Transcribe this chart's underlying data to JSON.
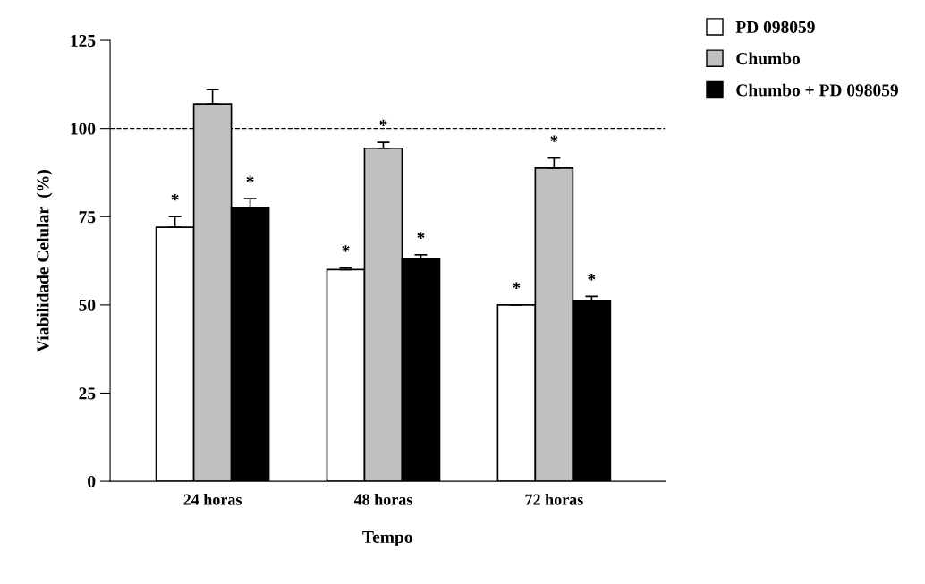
{
  "chart_data": {
    "type": "bar",
    "xlabel": "Tempo",
    "ylabel": "Viabilidade Celular  (%)",
    "categories": [
      "24 horas",
      "48 horas",
      "72 horas"
    ],
    "series": [
      {
        "name": "PD 098059",
        "color": "#ffffff",
        "values": [
          72,
          60,
          50
        ],
        "errors": [
          3,
          0.5,
          null
        ],
        "value_labels": [
          "*",
          "*",
          "*"
        ]
      },
      {
        "name": "Chumbo",
        "color": "#c0c0c0",
        "values": [
          107,
          94.4,
          88.8
        ],
        "errors": [
          4,
          1.7,
          2.8
        ],
        "value_labels": [
          null,
          "*",
          "*"
        ]
      },
      {
        "name": "Chumbo + PD 098059",
        "color": "#000000",
        "values": [
          77.6,
          63.2,
          51
        ],
        "errors": [
          2.5,
          1,
          1.4
        ],
        "value_labels": [
          "*",
          "*",
          "*"
        ]
      }
    ],
    "ylim": [
      0,
      125
    ],
    "yticks": [
      0,
      25,
      50,
      75,
      100,
      125
    ],
    "ref_lines": [
      {
        "axis": "y",
        "value": 100,
        "line_style": "dashed",
        "color": "#000000"
      }
    ],
    "grid": false,
    "legend": "top right",
    "marker": "square"
  }
}
